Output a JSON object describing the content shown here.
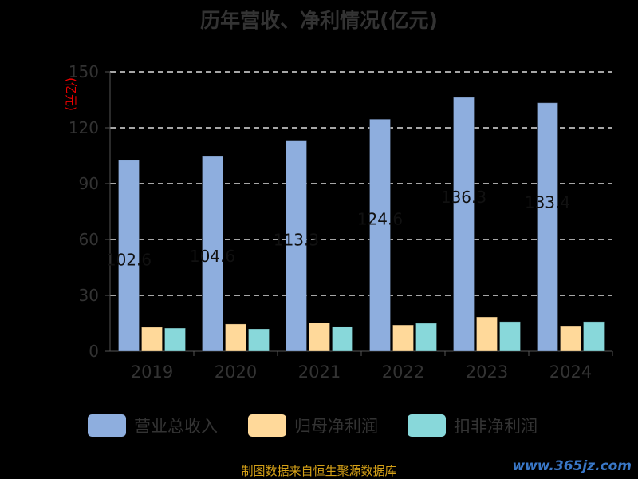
{
  "title": "历年营收、净利情况(亿元)",
  "source": "制图数据来自恒生聚源数据库",
  "watermark": "www.365jz.com",
  "chart_data": {
    "type": "bar",
    "title": "历年营收、净利情况(亿元)",
    "ylabel": "(亿元)",
    "xlabel": "",
    "ylim": [
      0,
      150
    ],
    "yticks": [
      "0",
      "30",
      "60",
      "90",
      "120",
      "150"
    ],
    "grid": true,
    "legend_position": "bottom",
    "categories": [
      "2019",
      "2020",
      "2021",
      "2022",
      "2023",
      "2024"
    ],
    "series": [
      {
        "name": "营业总收入",
        "color": "#8eaede",
        "values": [
          102.6,
          104.6,
          113.3,
          124.6,
          136.3,
          133.4
        ],
        "labels": [
          "102.6",
          "104.6",
          "113.3",
          "124.6",
          "136.3",
          "133.4"
        ]
      },
      {
        "name": "归母净利润",
        "color": "#ffd99a",
        "values": [
          12.9,
          14.6,
          15.4,
          14.1,
          18.4,
          13.7
        ]
      },
      {
        "name": "扣非净利润",
        "color": "#88d8da",
        "values": [
          12.4,
          12.0,
          13.3,
          15.0,
          15.9,
          15.9
        ]
      }
    ]
  }
}
